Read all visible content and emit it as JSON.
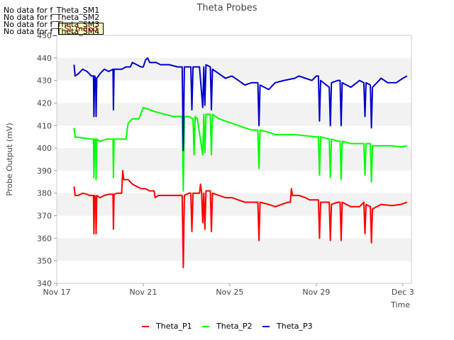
{
  "nodata_messages": [
    "No data for f_Theta_SM1",
    "No data for f_Theta_SM2",
    "No data for f_Theta_SM3",
    "No data for f_Theta_SM4"
  ],
  "badge": "SI_mded",
  "chart_data": {
    "type": "line",
    "title": "Theta Probes",
    "xlabel": "Time",
    "ylabel": "Probe Output (mV)",
    "xlim": [
      0,
      16.4
    ],
    "ylim": [
      340,
      450
    ],
    "x_ticks": [
      {
        "x": 0,
        "label": "Nov 17"
      },
      {
        "x": 4,
        "label": "Nov 21"
      },
      {
        "x": 8,
        "label": "Nov 25"
      },
      {
        "x": 12,
        "label": "Nov 29"
      },
      {
        "x": 16,
        "label": "Dec 3"
      }
    ],
    "y_ticks": [
      340,
      350,
      360,
      370,
      380,
      390,
      400,
      410,
      420,
      430,
      440,
      450
    ],
    "grid_bands": true,
    "legend_position": "bottom",
    "series": [
      {
        "name": "Theta_P1",
        "color": "#ff0000",
        "points": [
          [
            0.8,
            383
          ],
          [
            0.85,
            379
          ],
          [
            1.0,
            379
          ],
          [
            1.2,
            380
          ],
          [
            1.4,
            379.5
          ],
          [
            1.5,
            379
          ],
          [
            1.6,
            379
          ],
          [
            1.7,
            379
          ],
          [
            1.72,
            362
          ],
          [
            1.75,
            379
          ],
          [
            1.8,
            378
          ],
          [
            1.82,
            362
          ],
          [
            1.85,
            379
          ],
          [
            2.0,
            378
          ],
          [
            2.2,
            379
          ],
          [
            2.4,
            379.5
          ],
          [
            2.6,
            379.5
          ],
          [
            2.62,
            364
          ],
          [
            2.65,
            379.5
          ],
          [
            2.8,
            380
          ],
          [
            3.0,
            380
          ],
          [
            3.05,
            390
          ],
          [
            3.1,
            386
          ],
          [
            3.3,
            386
          ],
          [
            3.5,
            384
          ],
          [
            3.7,
            383
          ],
          [
            3.9,
            382
          ],
          [
            4.1,
            382
          ],
          [
            4.3,
            381
          ],
          [
            4.5,
            381
          ],
          [
            4.55,
            378
          ],
          [
            4.7,
            379
          ],
          [
            5.0,
            379
          ],
          [
            5.3,
            379
          ],
          [
            5.8,
            379
          ],
          [
            5.85,
            347
          ],
          [
            5.9,
            379
          ],
          [
            6.1,
            380
          ],
          [
            6.2,
            380
          ],
          [
            6.25,
            363
          ],
          [
            6.3,
            380
          ],
          [
            6.5,
            380
          ],
          [
            6.6,
            380
          ],
          [
            6.65,
            384
          ],
          [
            6.7,
            380
          ],
          [
            6.75,
            367
          ],
          [
            6.8,
            380
          ],
          [
            6.85,
            364
          ],
          [
            6.9,
            381
          ],
          [
            7.1,
            381
          ],
          [
            7.15,
            363
          ],
          [
            7.2,
            380
          ],
          [
            7.5,
            379
          ],
          [
            7.8,
            378
          ],
          [
            8.1,
            378
          ],
          [
            8.4,
            377
          ],
          [
            8.7,
            376
          ],
          [
            9.0,
            376
          ],
          [
            9.3,
            376
          ],
          [
            9.35,
            359
          ],
          [
            9.4,
            376
          ],
          [
            9.8,
            375
          ],
          [
            10.1,
            374
          ],
          [
            10.4,
            375
          ],
          [
            10.7,
            376
          ],
          [
            10.8,
            376
          ],
          [
            10.85,
            382
          ],
          [
            10.9,
            379
          ],
          [
            11.2,
            379
          ],
          [
            11.5,
            378
          ],
          [
            11.7,
            377
          ],
          [
            12.0,
            377
          ],
          [
            12.1,
            377
          ],
          [
            12.15,
            360
          ],
          [
            12.2,
            376
          ],
          [
            12.6,
            376
          ],
          [
            12.65,
            359
          ],
          [
            12.7,
            375
          ],
          [
            13.0,
            376
          ],
          [
            13.1,
            376
          ],
          [
            13.15,
            359
          ],
          [
            13.2,
            376
          ],
          [
            13.6,
            374
          ],
          [
            14.0,
            374
          ],
          [
            14.2,
            376
          ],
          [
            14.25,
            362
          ],
          [
            14.3,
            375
          ],
          [
            14.5,
            374
          ],
          [
            14.55,
            358
          ],
          [
            14.6,
            373
          ],
          [
            15.0,
            375
          ],
          [
            15.5,
            374.5
          ],
          [
            15.9,
            375
          ],
          [
            16.2,
            376
          ]
        ]
      },
      {
        "name": "Theta_P2",
        "color": "#00ff00",
        "points": [
          [
            0.8,
            409
          ],
          [
            0.85,
            405
          ],
          [
            1.2,
            404.5
          ],
          [
            1.6,
            404
          ],
          [
            1.7,
            404
          ],
          [
            1.72,
            387
          ],
          [
            1.75,
            404
          ],
          [
            1.8,
            404
          ],
          [
            1.82,
            386
          ],
          [
            1.85,
            404
          ],
          [
            2.0,
            403
          ],
          [
            2.3,
            404
          ],
          [
            2.6,
            404
          ],
          [
            2.62,
            387
          ],
          [
            2.65,
            404
          ],
          [
            3.0,
            404
          ],
          [
            3.2,
            404
          ],
          [
            3.3,
            411
          ],
          [
            3.5,
            413
          ],
          [
            3.8,
            413
          ],
          [
            4.0,
            418
          ],
          [
            4.3,
            417
          ],
          [
            4.6,
            416
          ],
          [
            5.0,
            415
          ],
          [
            5.4,
            414
          ],
          [
            5.8,
            414
          ],
          [
            5.85,
            381
          ],
          [
            5.9,
            414
          ],
          [
            6.1,
            414
          ],
          [
            6.3,
            413
          ],
          [
            6.35,
            397
          ],
          [
            6.4,
            414
          ],
          [
            6.5,
            413
          ],
          [
            6.75,
            397
          ],
          [
            6.8,
            415
          ],
          [
            6.85,
            398
          ],
          [
            6.9,
            415
          ],
          [
            7.1,
            415
          ],
          [
            7.15,
            397
          ],
          [
            7.2,
            415
          ],
          [
            7.5,
            413
          ],
          [
            7.8,
            412
          ],
          [
            8.1,
            411
          ],
          [
            8.4,
            410
          ],
          [
            8.7,
            409
          ],
          [
            9.0,
            408
          ],
          [
            9.3,
            408
          ],
          [
            9.35,
            391
          ],
          [
            9.4,
            408
          ],
          [
            9.8,
            407
          ],
          [
            10.1,
            406
          ],
          [
            10.5,
            406
          ],
          [
            11.0,
            406
          ],
          [
            11.5,
            405.5
          ],
          [
            12.0,
            405
          ],
          [
            12.1,
            405
          ],
          [
            12.15,
            388
          ],
          [
            12.2,
            405
          ],
          [
            12.6,
            404
          ],
          [
            12.65,
            387
          ],
          [
            12.7,
            404
          ],
          [
            13.0,
            403
          ],
          [
            13.1,
            403
          ],
          [
            13.15,
            386
          ],
          [
            13.2,
            403
          ],
          [
            13.6,
            402
          ],
          [
            14.0,
            402
          ],
          [
            14.2,
            402
          ],
          [
            14.25,
            388
          ],
          [
            14.3,
            402
          ],
          [
            14.5,
            402
          ],
          [
            14.55,
            385
          ],
          [
            14.6,
            401
          ],
          [
            15.0,
            401
          ],
          [
            15.5,
            401
          ],
          [
            15.9,
            400.5
          ],
          [
            16.2,
            401
          ]
        ]
      },
      {
        "name": "Theta_P3",
        "color": "#0000cc",
        "points": [
          [
            0.8,
            437
          ],
          [
            0.85,
            432
          ],
          [
            1.0,
            433
          ],
          [
            1.2,
            435
          ],
          [
            1.4,
            434
          ],
          [
            1.6,
            432
          ],
          [
            1.7,
            432
          ],
          [
            1.72,
            414
          ],
          [
            1.75,
            432
          ],
          [
            1.8,
            431
          ],
          [
            1.82,
            414
          ],
          [
            1.85,
            431
          ],
          [
            2.0,
            433
          ],
          [
            2.2,
            435
          ],
          [
            2.4,
            434
          ],
          [
            2.6,
            435
          ],
          [
            2.62,
            417
          ],
          [
            2.65,
            435
          ],
          [
            3.0,
            435
          ],
          [
            3.2,
            436
          ],
          [
            3.4,
            436
          ],
          [
            3.5,
            438
          ],
          [
            3.7,
            437
          ],
          [
            3.9,
            436
          ],
          [
            4.0,
            436
          ],
          [
            4.1,
            439
          ],
          [
            4.2,
            440
          ],
          [
            4.3,
            438
          ],
          [
            4.6,
            438
          ],
          [
            4.8,
            437
          ],
          [
            5.2,
            437
          ],
          [
            5.6,
            436
          ],
          [
            5.8,
            436
          ],
          [
            5.85,
            399
          ],
          [
            5.9,
            436
          ],
          [
            6.1,
            436
          ],
          [
            6.2,
            436
          ],
          [
            6.25,
            417
          ],
          [
            6.3,
            436
          ],
          [
            6.6,
            436
          ],
          [
            6.75,
            418
          ],
          [
            6.8,
            436
          ],
          [
            6.85,
            419
          ],
          [
            6.9,
            437
          ],
          [
            7.1,
            436
          ],
          [
            7.15,
            417
          ],
          [
            7.2,
            435
          ],
          [
            7.5,
            433
          ],
          [
            7.8,
            431
          ],
          [
            8.1,
            432
          ],
          [
            8.4,
            430
          ],
          [
            8.7,
            428
          ],
          [
            9.0,
            429
          ],
          [
            9.3,
            429
          ],
          [
            9.35,
            410
          ],
          [
            9.4,
            428
          ],
          [
            9.8,
            426
          ],
          [
            10.1,
            429
          ],
          [
            10.5,
            430
          ],
          [
            11.0,
            431
          ],
          [
            11.2,
            432
          ],
          [
            11.5,
            431
          ],
          [
            11.8,
            430
          ],
          [
            12.0,
            432
          ],
          [
            12.1,
            432
          ],
          [
            12.15,
            412
          ],
          [
            12.2,
            430
          ],
          [
            12.6,
            427
          ],
          [
            12.65,
            410
          ],
          [
            12.7,
            429
          ],
          [
            13.0,
            430
          ],
          [
            13.1,
            430
          ],
          [
            13.15,
            410
          ],
          [
            13.2,
            429
          ],
          [
            13.6,
            427
          ],
          [
            14.0,
            430
          ],
          [
            14.2,
            429
          ],
          [
            14.25,
            414
          ],
          [
            14.3,
            429
          ],
          [
            14.5,
            428
          ],
          [
            14.55,
            409
          ],
          [
            14.6,
            427
          ],
          [
            15.0,
            431
          ],
          [
            15.3,
            429
          ],
          [
            15.7,
            429
          ],
          [
            16.0,
            431
          ],
          [
            16.2,
            432
          ]
        ]
      }
    ]
  }
}
